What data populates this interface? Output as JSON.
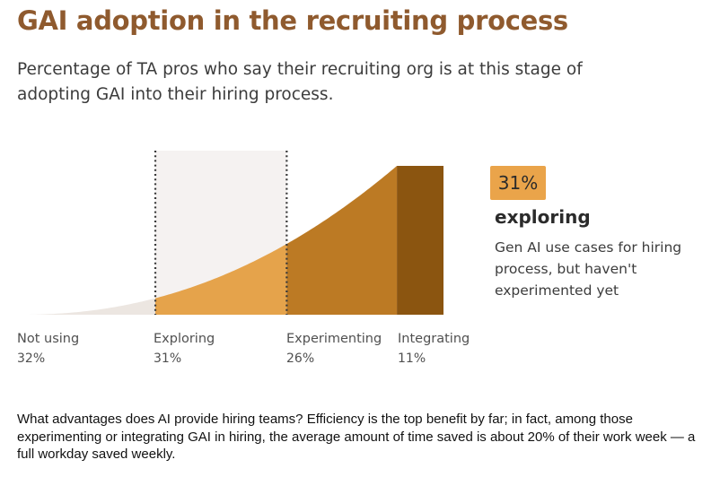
{
  "title": "GAI adoption in the recruiting process",
  "subtitle": "Percentage of TA pros who say their recruiting org is at this stage of adopting GAI into their hiring process.",
  "chart_data": {
    "type": "area",
    "categories": [
      "Not using",
      "Exploring",
      "Experimenting",
      "Integrating"
    ],
    "values": [
      32,
      31,
      26,
      11
    ],
    "value_labels": [
      "32%",
      "31%",
      "26%",
      "11%"
    ],
    "highlighted_category": "Exploring",
    "colors": [
      "#ece6e1",
      "#e5a34b",
      "#bc7a24",
      "#8b5510"
    ],
    "highlight_background": "#f5f2f1"
  },
  "callout": {
    "value": "31%",
    "heading": "exploring",
    "body": "Gen AI use cases for hiring process, but haven't experimented yet"
  },
  "footnote": "What advantages does AI provide hiring teams? Efficiency is the top benefit by far; in fact, among those experimenting or integrating GAI in hiring, the average amount of time saved is about 20% of their work week — a full workday saved weekly."
}
